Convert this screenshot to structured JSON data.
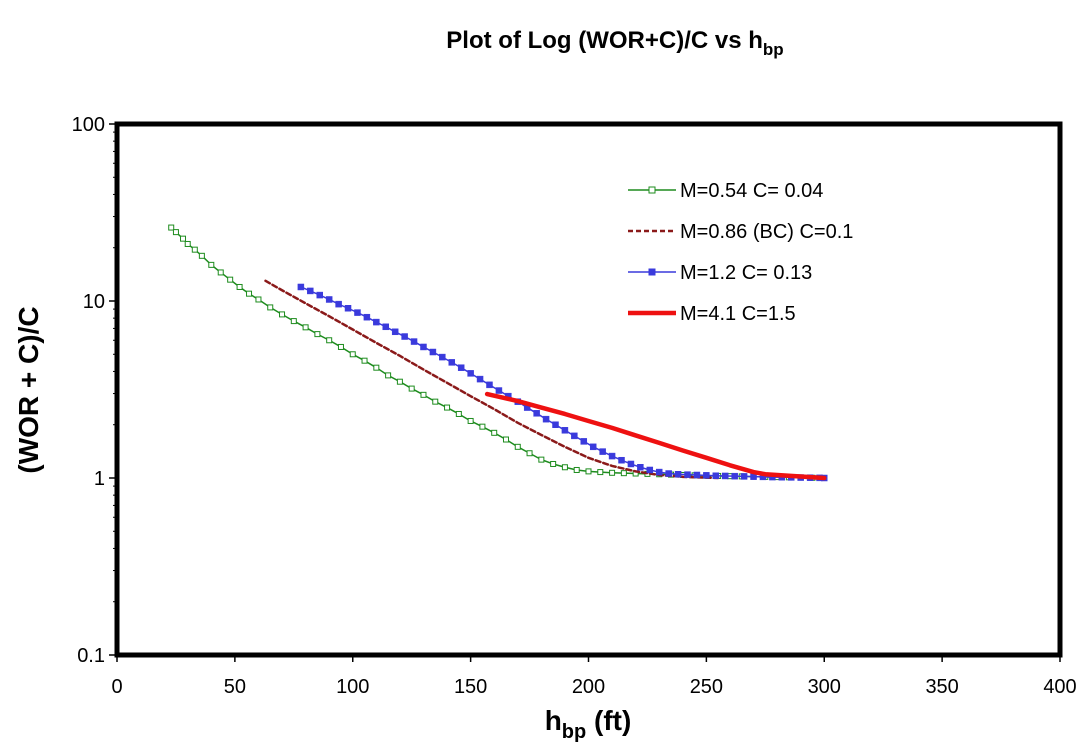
{
  "chart_data": {
    "type": "line",
    "title": {
      "main": "Plot of Log (WOR+C)/C vs h",
      "subscript": "bp"
    },
    "xlabel": {
      "main": "h",
      "subscript": "bp",
      "suffix": " (ft)"
    },
    "ylabel": "(WOR + C)/C",
    "xlim": [
      0,
      400
    ],
    "ylim": [
      0.1,
      100
    ],
    "yscale": "log",
    "xticks": [
      0,
      50,
      100,
      150,
      200,
      250,
      300,
      350,
      400
    ],
    "xtick_labels": [
      "0",
      "50",
      "100",
      "150",
      "200",
      "250",
      "300",
      "350",
      "400"
    ],
    "yticks": [
      0.1,
      1,
      10,
      100
    ],
    "ytick_labels": [
      "0.1",
      "1",
      "10",
      "100"
    ],
    "grid": false,
    "legend_position": "top-right",
    "series": [
      {
        "name": "M=0.54 C= 0.04",
        "color": "#1e8c1e",
        "line_style": "solid",
        "marker": "open-square",
        "x": [
          23,
          25,
          28,
          30,
          33,
          36,
          40,
          44,
          48,
          52,
          56,
          60,
          65,
          70,
          75,
          80,
          85,
          90,
          95,
          100,
          105,
          110,
          115,
          120,
          125,
          130,
          135,
          140,
          145,
          150,
          155,
          160,
          165,
          170,
          175,
          180,
          185,
          190,
          195,
          200,
          205,
          210,
          215,
          220,
          225,
          230,
          235,
          240,
          245,
          250,
          255,
          260,
          265,
          270,
          275,
          280,
          285,
          290,
          295,
          300
        ],
        "y": [
          26,
          24.5,
          22.5,
          21,
          19.5,
          18,
          16,
          14.5,
          13.2,
          12,
          11,
          10.2,
          9.2,
          8.4,
          7.7,
          7.1,
          6.5,
          6.0,
          5.5,
          5.0,
          4.6,
          4.2,
          3.8,
          3.5,
          3.2,
          2.95,
          2.7,
          2.5,
          2.3,
          2.1,
          1.95,
          1.8,
          1.65,
          1.5,
          1.38,
          1.27,
          1.2,
          1.15,
          1.11,
          1.09,
          1.08,
          1.07,
          1.065,
          1.06,
          1.055,
          1.05,
          1.045,
          1.04,
          1.035,
          1.03,
          1.027,
          1.024,
          1.021,
          1.018,
          1.015,
          1.012,
          1.009,
          1.006,
          1.003,
          1.0
        ]
      },
      {
        "name": "M=0.86 (BC) C=0.1",
        "color": "#8b1a1a",
        "line_style": "dashed",
        "marker": "none",
        "x": [
          63,
          70,
          80,
          90,
          100,
          110,
          120,
          130,
          140,
          150,
          160,
          170,
          180,
          190,
          200,
          210,
          220,
          230,
          240,
          250,
          255
        ],
        "y": [
          13,
          11.5,
          9.7,
          8.2,
          6.9,
          5.8,
          4.9,
          4.1,
          3.45,
          2.9,
          2.45,
          2.05,
          1.75,
          1.5,
          1.3,
          1.17,
          1.09,
          1.04,
          1.015,
          1.005,
          1.0
        ]
      },
      {
        "name": "M=1.2 C= 0.13",
        "color": "#3a3adc",
        "line_style": "solid",
        "marker": "filled-square",
        "x": [
          78,
          82,
          86,
          90,
          94,
          98,
          102,
          106,
          110,
          114,
          118,
          122,
          126,
          130,
          134,
          138,
          142,
          146,
          150,
          154,
          158,
          162,
          166,
          170,
          174,
          178,
          182,
          186,
          190,
          194,
          198,
          202,
          206,
          210,
          214,
          218,
          222,
          226,
          230,
          234,
          238,
          242,
          246,
          250,
          254,
          258,
          262,
          266,
          270,
          274,
          278,
          282,
          286,
          290,
          294,
          298,
          300
        ],
        "y": [
          12,
          11.4,
          10.8,
          10.2,
          9.6,
          9.1,
          8.6,
          8.1,
          7.6,
          7.15,
          6.7,
          6.3,
          5.9,
          5.5,
          5.15,
          4.82,
          4.5,
          4.2,
          3.9,
          3.62,
          3.36,
          3.12,
          2.9,
          2.7,
          2.5,
          2.32,
          2.15,
          2.0,
          1.86,
          1.73,
          1.61,
          1.5,
          1.41,
          1.33,
          1.26,
          1.2,
          1.15,
          1.11,
          1.08,
          1.06,
          1.05,
          1.045,
          1.04,
          1.035,
          1.03,
          1.027,
          1.024,
          1.021,
          1.018,
          1.015,
          1.012,
          1.01,
          1.008,
          1.006,
          1.004,
          1.002,
          1.0
        ]
      },
      {
        "name": "M=4.1 C=1.5",
        "color": "#ee1111",
        "line_style": "solid-thick",
        "marker": "none",
        "x": [
          157,
          170,
          180,
          190,
          200,
          210,
          220,
          230,
          240,
          250,
          260,
          270,
          275,
          280,
          290,
          300
        ],
        "y": [
          2.98,
          2.72,
          2.5,
          2.3,
          2.1,
          1.92,
          1.74,
          1.58,
          1.43,
          1.3,
          1.18,
          1.08,
          1.05,
          1.04,
          1.02,
          1.0
        ]
      }
    ]
  }
}
